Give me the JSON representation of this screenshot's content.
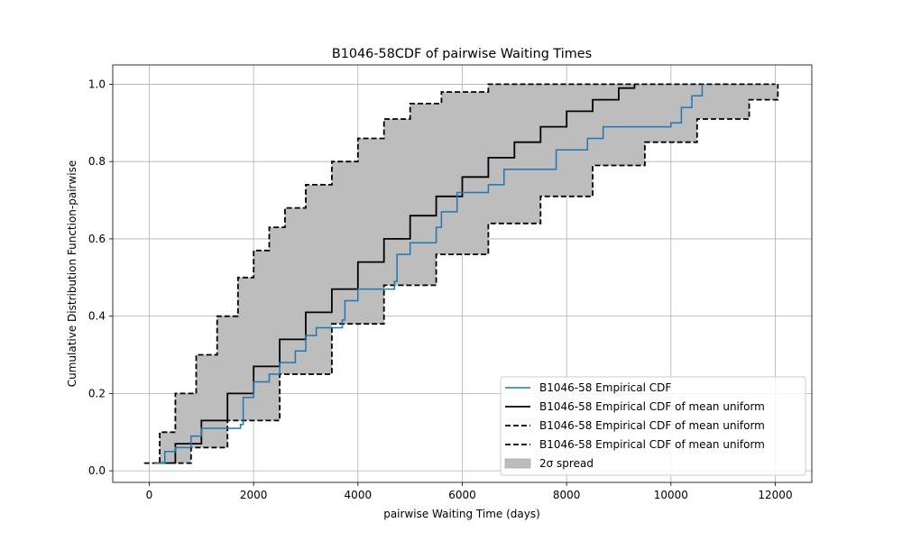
{
  "chart_data": {
    "type": "line",
    "title": "B1046-58CDF of pairwise Waiting Times",
    "xlabel": "pairwise Waiting Time (days)",
    "ylabel": "Cumulative Distribution Function-pairwise",
    "xlim": [
      -700,
      12700
    ],
    "ylim": [
      -0.03,
      1.05
    ],
    "xticks": [
      0,
      2000,
      4000,
      6000,
      8000,
      10000,
      12000
    ],
    "yticks": [
      0.0,
      0.2,
      0.4,
      0.6,
      0.8,
      1.0
    ],
    "xtick_labels": [
      "0",
      "2000",
      "4000",
      "6000",
      "8000",
      "10000",
      "12000"
    ],
    "ytick_labels": [
      "0.0",
      "0.2",
      "0.4",
      "0.6",
      "0.8",
      "1.0"
    ],
    "grid": true,
    "legend_position": "lower-right",
    "colors": {
      "empirical": "#1f77b4",
      "mean": "#000000",
      "band": "#bdbdbd"
    },
    "band": {
      "name": "2σ spread",
      "upper": {
        "x": [
          -100,
          200,
          500,
          900,
          1300,
          1700,
          2000,
          2300,
          2600,
          3000,
          3500,
          4000,
          4500,
          5000,
          5600,
          6500,
          12000
        ],
        "y": [
          0.02,
          0.1,
          0.2,
          0.3,
          0.4,
          0.5,
          0.57,
          0.63,
          0.68,
          0.74,
          0.8,
          0.86,
          0.91,
          0.95,
          0.98,
          1.0,
          1.0
        ]
      },
      "lower": {
        "x": [
          400,
          800,
          1500,
          2500,
          3500,
          4500,
          5500,
          6500,
          7500,
          8500,
          9500,
          10500,
          11500,
          12050
        ],
        "y": [
          0.02,
          0.06,
          0.13,
          0.25,
          0.38,
          0.48,
          0.56,
          0.64,
          0.71,
          0.79,
          0.85,
          0.91,
          0.96,
          1.0
        ]
      }
    },
    "series": [
      {
        "name": "B1046-58 Empirical CDF",
        "style": "solid",
        "x": [
          100,
          300,
          500,
          800,
          1000,
          1750,
          1800,
          2000,
          2300,
          2500,
          2800,
          3000,
          3200,
          3700,
          3750,
          4000,
          4700,
          4750,
          5000,
          5500,
          5600,
          5900,
          6500,
          6800,
          7800,
          8400,
          8700,
          10000,
          10200,
          10400,
          10600
        ],
        "y": [
          0.02,
          0.05,
          0.06,
          0.09,
          0.11,
          0.12,
          0.19,
          0.23,
          0.25,
          0.28,
          0.31,
          0.35,
          0.37,
          0.39,
          0.44,
          0.47,
          0.49,
          0.56,
          0.59,
          0.63,
          0.67,
          0.72,
          0.74,
          0.78,
          0.83,
          0.86,
          0.89,
          0.9,
          0.94,
          0.97,
          1.0
        ]
      },
      {
        "name": "B1046-58 Empirical CDF of mean uniform",
        "style": "solid",
        "x": [
          100,
          500,
          1000,
          1500,
          2000,
          2500,
          3000,
          3500,
          4000,
          4500,
          5000,
          5500,
          6000,
          6500,
          7000,
          7500,
          8000,
          8500,
          9000,
          9300
        ],
        "y": [
          0.02,
          0.07,
          0.13,
          0.2,
          0.27,
          0.34,
          0.41,
          0.47,
          0.54,
          0.6,
          0.66,
          0.71,
          0.76,
          0.81,
          0.85,
          0.89,
          0.93,
          0.96,
          0.99,
          1.0
        ]
      },
      {
        "name": "B1046-58 Empirical CDF of mean uniform",
        "style": "dashed",
        "ref": "band.upper"
      },
      {
        "name": "B1046-58 Empirical CDF of mean uniform",
        "style": "dashed",
        "ref": "band.lower"
      }
    ]
  }
}
